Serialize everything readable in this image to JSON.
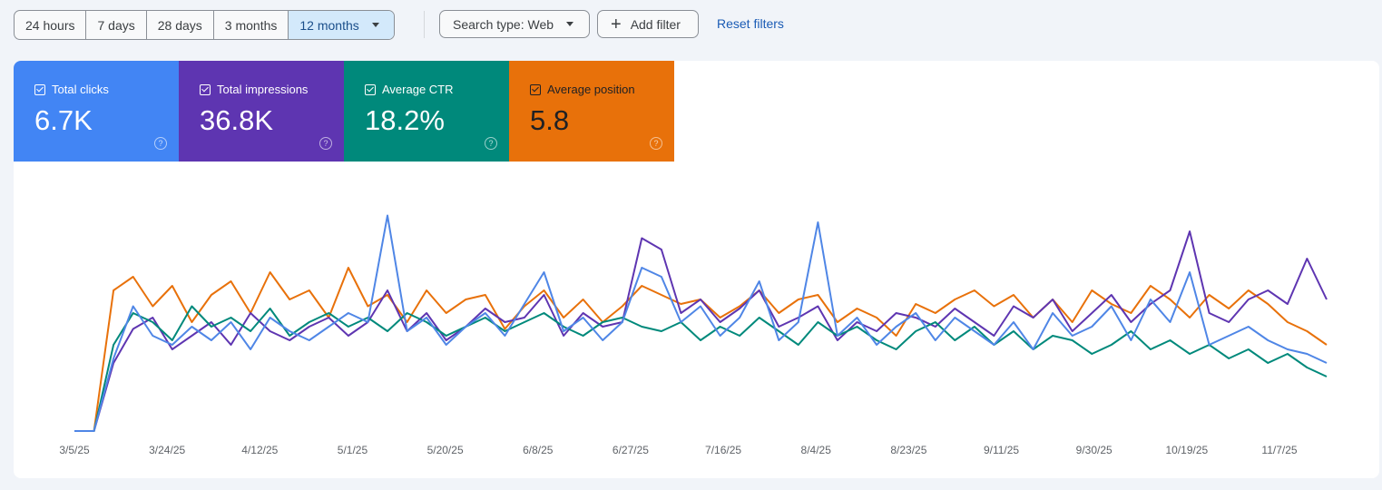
{
  "date_range": {
    "options": [
      "24 hours",
      "7 days",
      "28 days",
      "3 months",
      "12 months"
    ],
    "selected": "12 months"
  },
  "filters": {
    "search_type": "Search type: Web",
    "add_filter": "Add filter",
    "reset": "Reset filters"
  },
  "metrics": [
    {
      "label": "Total clicks",
      "value": "6.7K",
      "color": "#4285f4",
      "checked": true
    },
    {
      "label": "Total impressions",
      "value": "36.8K",
      "color": "#5e35b1",
      "checked": true
    },
    {
      "label": "Average CTR",
      "value": "18.2%",
      "color": "#00897b",
      "checked": true
    },
    {
      "label": "Average position",
      "value": "5.8",
      "color": "#e8710a",
      "checked": true
    }
  ],
  "chart_data": {
    "type": "line",
    "grid": false,
    "y_axis_shown": false,
    "x_tick_labels": [
      "3/5/25",
      "3/24/25",
      "4/12/25",
      "5/1/25",
      "5/20/25",
      "6/8/25",
      "6/27/25",
      "7/16/25",
      "8/4/25",
      "8/23/25",
      "9/11/25",
      "9/30/25",
      "10/19/25",
      "11/7/25"
    ],
    "x": [
      "3/5/25",
      "3/9/25",
      "3/13/25",
      "3/17/25",
      "3/21/25",
      "3/25/25",
      "3/29/25",
      "4/2/25",
      "4/6/25",
      "4/10/25",
      "4/14/25",
      "4/18/25",
      "4/22/25",
      "4/26/25",
      "4/30/25",
      "5/4/25",
      "5/8/25",
      "5/12/25",
      "5/16/25",
      "5/20/25",
      "5/24/25",
      "5/28/25",
      "6/1/25",
      "6/5/25",
      "6/9/25",
      "6/13/25",
      "6/17/25",
      "6/21/25",
      "6/25/25",
      "6/29/25",
      "7/3/25",
      "7/7/25",
      "7/11/25",
      "7/15/25",
      "7/19/25",
      "7/23/25",
      "7/27/25",
      "7/31/25",
      "8/4/25",
      "8/8/25",
      "8/12/25",
      "8/16/25",
      "8/20/25",
      "8/24/25",
      "8/28/25",
      "9/1/25",
      "9/5/25",
      "9/9/25",
      "9/13/25",
      "9/17/25",
      "9/21/25",
      "9/25/25",
      "9/29/25",
      "10/3/25",
      "10/7/25",
      "10/11/25",
      "10/15/25",
      "10/19/25",
      "10/23/25",
      "10/27/25",
      "10/31/25",
      "11/4/25",
      "11/8/25",
      "11/12/25",
      "11/16/25"
    ],
    "y_range_relative": [
      0,
      100
    ],
    "series": [
      {
        "name": "Average position",
        "color": "#e8710a",
        "values": [
          0,
          0,
          62,
          68,
          55,
          64,
          48,
          60,
          66,
          52,
          70,
          58,
          62,
          50,
          72,
          55,
          60,
          48,
          62,
          52,
          58,
          60,
          45,
          55,
          62,
          50,
          58,
          48,
          55,
          64,
          60,
          56,
          58,
          50,
          55,
          62,
          52,
          58,
          60,
          48,
          54,
          50,
          42,
          56,
          52,
          58,
          62,
          55,
          60,
          50,
          58,
          48,
          62,
          56,
          52,
          64,
          58,
          50,
          60,
          54,
          62,
          56,
          48,
          44,
          38
        ]
      },
      {
        "name": "Total impressions",
        "color": "#5e35b1",
        "values": [
          0,
          0,
          30,
          45,
          50,
          36,
          42,
          48,
          38,
          52,
          44,
          40,
          46,
          50,
          42,
          48,
          62,
          44,
          52,
          40,
          46,
          54,
          48,
          50,
          60,
          42,
          52,
          46,
          48,
          85,
          80,
          52,
          58,
          48,
          54,
          62,
          46,
          50,
          55,
          40,
          48,
          44,
          52,
          50,
          46,
          54,
          48,
          42,
          55,
          50,
          58,
          44,
          52,
          60,
          48,
          56,
          62,
          88,
          52,
          48,
          58,
          62,
          56,
          76,
          58
        ]
      },
      {
        "name": "Average CTR",
        "color": "#00897b",
        "values": [
          0,
          0,
          38,
          52,
          48,
          40,
          55,
          46,
          50,
          44,
          54,
          42,
          48,
          52,
          46,
          50,
          44,
          52,
          48,
          42,
          46,
          50,
          44,
          48,
          52,
          46,
          42,
          48,
          50,
          46,
          44,
          48,
          40,
          46,
          42,
          50,
          44,
          38,
          48,
          42,
          46,
          40,
          36,
          44,
          48,
          40,
          46,
          38,
          44,
          36,
          42,
          40,
          34,
          38,
          44,
          36,
          40,
          34,
          38,
          32,
          36,
          30,
          34,
          28,
          24
        ]
      },
      {
        "name": "Total clicks",
        "color": "#4f86e6",
        "values": [
          0,
          0,
          32,
          55,
          42,
          38,
          46,
          40,
          48,
          36,
          50,
          44,
          40,
          46,
          52,
          48,
          95,
          44,
          50,
          38,
          46,
          52,
          42,
          56,
          70,
          44,
          50,
          40,
          48,
          72,
          68,
          48,
          55,
          42,
          50,
          66,
          40,
          48,
          92,
          42,
          50,
          38,
          46,
          52,
          40,
          50,
          44,
          38,
          48,
          36,
          52,
          42,
          46,
          55,
          40,
          58,
          48,
          70,
          38,
          42,
          46,
          40,
          36,
          34,
          30
        ]
      }
    ]
  }
}
